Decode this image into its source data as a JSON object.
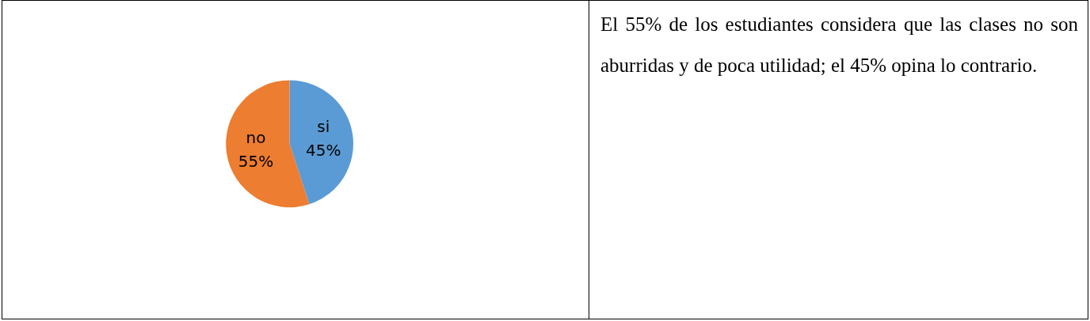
{
  "chart_data": {
    "type": "pie",
    "categories": [
      "si",
      "no"
    ],
    "values": [
      45,
      55
    ],
    "colors": [
      "#5b9bd5",
      "#ed7d31"
    ],
    "value_labels": [
      "45%",
      "55%"
    ],
    "legend": false,
    "annotations": [
      "El 55% de los estudiantes considera que las clases no son aburridas y de poca utilidad; el 45% opina lo contrario."
    ]
  }
}
